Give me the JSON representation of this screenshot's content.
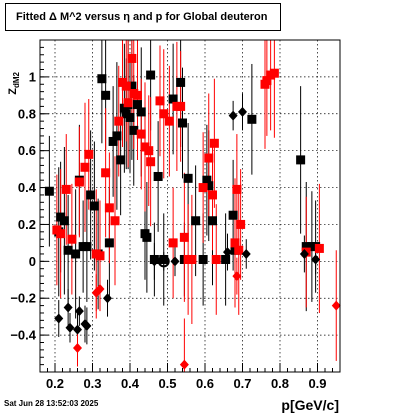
{
  "title": "Fitted Δ M^2 versus η and p for Global deuteron",
  "footer": {
    "timestamp": "Sat Jun 28 13:52:03 2025"
  },
  "chart_data": {
    "type": "scatter",
    "title": "Fitted Δ M^2 versus η and p for Global deuteron",
    "xlabel": "p[GeV/c]",
    "ylabel": "Z_dM2",
    "xlim": [
      0.16,
      0.96
    ],
    "ylim": [
      -0.6,
      1.2
    ],
    "xticks": [
      0.2,
      0.3,
      0.4,
      0.5,
      0.6,
      0.7,
      0.8,
      0.9
    ],
    "xtick_labels": [
      "0.2",
      "0.3",
      "0.4",
      "0.5",
      "0.6",
      "0.7",
      "0.8",
      "0.9"
    ],
    "yticks": [
      -0.4,
      -0.2,
      0,
      0.2,
      0.4,
      0.6,
      0.8,
      1
    ],
    "ytick_labels": [
      "−0.4",
      "−0.2",
      "0",
      "0.2",
      "0.4",
      "0.6",
      "0.8",
      "1"
    ],
    "grid": true,
    "series": [
      {
        "marker": "square",
        "color": "#000000",
        "points": [
          {
            "x": 0.185,
            "y": 0.38,
            "err": 0.3
          },
          {
            "x": 0.21,
            "y": 0.16,
            "err": 0.35
          },
          {
            "x": 0.215,
            "y": 0.24,
            "err": 0.3
          },
          {
            "x": 0.225,
            "y": 0.22,
            "err": 0.4
          },
          {
            "x": 0.235,
            "y": 0.06,
            "err": 0.3
          },
          {
            "x": 0.255,
            "y": 0.04,
            "err": 0.35
          },
          {
            "x": 0.265,
            "y": 0.44,
            "err": 0.3
          },
          {
            "x": 0.275,
            "y": 0.08,
            "err": 0.25
          },
          {
            "x": 0.285,
            "y": 0.08,
            "err": 0.3
          },
          {
            "x": 0.295,
            "y": 0.36,
            "err": 0.35
          },
          {
            "x": 0.305,
            "y": 0.3,
            "err": 0.35
          },
          {
            "x": 0.315,
            "y": 0.04,
            "err": 0.3
          },
          {
            "x": 0.325,
            "y": 0.99,
            "err": 0.35
          },
          {
            "x": 0.335,
            "y": 0.9,
            "err": 0.3
          },
          {
            "x": 0.345,
            "y": 0.1,
            "err": 0.3
          },
          {
            "x": 0.355,
            "y": 0.65,
            "err": 0.3
          },
          {
            "x": 0.365,
            "y": 0.68,
            "err": 0.4
          },
          {
            "x": 0.375,
            "y": 0.55,
            "err": 0.3
          },
          {
            "x": 0.385,
            "y": 0.83,
            "err": 0.35
          },
          {
            "x": 0.39,
            "y": 0.8,
            "err": 0.3
          },
          {
            "x": 0.395,
            "y": 0.85,
            "err": 0.35
          },
          {
            "x": 0.4,
            "y": 0.78,
            "err": 0.3
          },
          {
            "x": 0.405,
            "y": 0.95,
            "err": 0.4
          },
          {
            "x": 0.41,
            "y": 0.71,
            "err": 0.3
          },
          {
            "x": 0.42,
            "y": 0.85,
            "err": 0.3
          },
          {
            "x": 0.43,
            "y": 0.81,
            "err": 0.35
          },
          {
            "x": 0.44,
            "y": 0.15,
            "err": 0.25
          },
          {
            "x": 0.445,
            "y": 0.13,
            "err": 0.3
          },
          {
            "x": 0.455,
            "y": 1.01,
            "err": 0.3
          },
          {
            "x": 0.465,
            "y": 0.01,
            "err": 0.2
          },
          {
            "x": 0.475,
            "y": 0.46,
            "err": 0.3
          },
          {
            "x": 0.49,
            "y": 0.01,
            "err": 0.25
          },
          {
            "x": 0.515,
            "y": 0.88,
            "err": 0.3
          },
          {
            "x": 0.535,
            "y": 0.97,
            "err": 0.35
          },
          {
            "x": 0.54,
            "y": 0.75,
            "err": 0.3
          },
          {
            "x": 0.545,
            "y": 0.01,
            "err": 0.2
          },
          {
            "x": 0.555,
            "y": 0.45,
            "err": 0.3
          },
          {
            "x": 0.575,
            "y": 0.22,
            "err": 0.3
          },
          {
            "x": 0.595,
            "y": 0.01,
            "err": 0.25
          },
          {
            "x": 0.605,
            "y": 0.44,
            "err": 0.3
          },
          {
            "x": 0.61,
            "y": 0.41,
            "err": 0.3
          },
          {
            "x": 0.62,
            "y": 0.22,
            "err": 0.35
          },
          {
            "x": 0.655,
            "y": 0.01,
            "err": 0.25
          },
          {
            "x": 0.675,
            "y": 0.25,
            "err": 0.3
          },
          {
            "x": 0.68,
            "y": 0.06,
            "err": 0.25
          },
          {
            "x": 0.725,
            "y": 0.77,
            "err": 0.3
          },
          {
            "x": 0.855,
            "y": 0.55,
            "err": 0.4
          },
          {
            "x": 0.87,
            "y": 0.08,
            "err": 0.35
          },
          {
            "x": 0.885,
            "y": 0.08,
            "err": 0.3
          },
          {
            "x": 0.895,
            "y": 0.08,
            "err": 0.25
          }
        ]
      },
      {
        "marker": "square",
        "color": "#ff0000",
        "points": [
          {
            "x": 0.205,
            "y": 0.17,
            "err": 0.3
          },
          {
            "x": 0.215,
            "y": 0.15,
            "err": 0.35
          },
          {
            "x": 0.23,
            "y": 0.39,
            "err": 0.3
          },
          {
            "x": 0.245,
            "y": 0.12,
            "err": 0.3
          },
          {
            "x": 0.265,
            "y": 0.43,
            "err": 0.3
          },
          {
            "x": 0.28,
            "y": 0.51,
            "err": 0.35
          },
          {
            "x": 0.29,
            "y": 0.58,
            "err": 0.3
          },
          {
            "x": 0.31,
            "y": 0.04,
            "err": 0.35
          },
          {
            "x": 0.32,
            "y": 0.03,
            "err": 0.3
          },
          {
            "x": 0.335,
            "y": 0.48,
            "err": 0.35
          },
          {
            "x": 0.345,
            "y": 0.29,
            "err": 0.3
          },
          {
            "x": 0.36,
            "y": 0.22,
            "err": 0.35
          },
          {
            "x": 0.37,
            "y": 0.76,
            "err": 0.3
          },
          {
            "x": 0.38,
            "y": 0.97,
            "err": 0.35
          },
          {
            "x": 0.39,
            "y": 0.95,
            "err": 0.3
          },
          {
            "x": 0.395,
            "y": 0.86,
            "err": 0.35
          },
          {
            "x": 0.405,
            "y": 1.1,
            "err": 0.3
          },
          {
            "x": 0.41,
            "y": 0.91,
            "err": 0.3
          },
          {
            "x": 0.42,
            "y": 0.9,
            "err": 0.35
          },
          {
            "x": 0.43,
            "y": 0.69,
            "err": 0.3
          },
          {
            "x": 0.44,
            "y": 0.62,
            "err": 0.35
          },
          {
            "x": 0.45,
            "y": 0.6,
            "err": 0.3
          },
          {
            "x": 0.455,
            "y": 0.54,
            "err": 0.35
          },
          {
            "x": 0.48,
            "y": 0.87,
            "err": 0.3
          },
          {
            "x": 0.49,
            "y": 0.8,
            "err": 0.35
          },
          {
            "x": 0.505,
            "y": 0.76,
            "err": 0.3
          },
          {
            "x": 0.515,
            "y": 0.1,
            "err": 0.3
          },
          {
            "x": 0.525,
            "y": 0.84,
            "err": 0.35
          },
          {
            "x": 0.535,
            "y": 0.84,
            "err": 0.3
          },
          {
            "x": 0.545,
            "y": 0.13,
            "err": 0.35
          },
          {
            "x": 0.555,
            "y": 0.01,
            "err": 0.3
          },
          {
            "x": 0.565,
            "y": 0.01,
            "err": 0.35
          },
          {
            "x": 0.595,
            "y": 0.4,
            "err": 0.3
          },
          {
            "x": 0.61,
            "y": 0.56,
            "err": 0.35
          },
          {
            "x": 0.62,
            "y": 0.36,
            "err": 0.3
          },
          {
            "x": 0.625,
            "y": 0.64,
            "err": 0.35
          },
          {
            "x": 0.63,
            "y": 0.01,
            "err": 0.3
          },
          {
            "x": 0.68,
            "y": 0.1,
            "err": 0.35
          },
          {
            "x": 0.685,
            "y": 0.39,
            "err": 0.3
          },
          {
            "x": 0.69,
            "y": 0.06,
            "err": 0.35
          },
          {
            "x": 0.695,
            "y": 0.2,
            "err": 0.3
          },
          {
            "x": 0.76,
            "y": 0.96,
            "err": 0.35
          },
          {
            "x": 0.765,
            "y": 0.98,
            "err": 0.3
          },
          {
            "x": 0.775,
            "y": 1.01,
            "err": 0.3
          },
          {
            "x": 0.785,
            "y": 1.02,
            "err": 0.35
          },
          {
            "x": 0.87,
            "y": 0.05,
            "err": 0.3
          },
          {
            "x": 0.905,
            "y": 0.07,
            "err": 0.35
          }
        ]
      },
      {
        "marker": "diamond",
        "color": "#000000",
        "points": [
          {
            "x": 0.21,
            "y": -0.31,
            "err": 0.1
          },
          {
            "x": 0.235,
            "y": -0.25,
            "err": 0.1
          },
          {
            "x": 0.24,
            "y": -0.36,
            "err": 0.08
          },
          {
            "x": 0.26,
            "y": -0.37,
            "err": 0.1
          },
          {
            "x": 0.265,
            "y": -0.27,
            "err": 0.08
          },
          {
            "x": 0.28,
            "y": -0.34,
            "err": 0.1
          },
          {
            "x": 0.285,
            "y": -0.35,
            "err": 0.1
          },
          {
            "x": 0.34,
            "y": -0.2,
            "err": 0.1
          },
          {
            "x": 0.465,
            "y": 0.0,
            "err": 0.1
          },
          {
            "x": 0.52,
            "y": 0.0,
            "err": 0.08
          },
          {
            "x": 0.66,
            "y": 0.05,
            "err": 0.1
          },
          {
            "x": 0.675,
            "y": 0.79,
            "err": 0.08
          },
          {
            "x": 0.7,
            "y": 0.81,
            "err": 0.1
          },
          {
            "x": 0.71,
            "y": 0.04,
            "err": 0.08
          },
          {
            "x": 0.865,
            "y": 0.04,
            "err": 0.1
          },
          {
            "x": 0.895,
            "y": 0.01,
            "err": 0.08
          }
        ]
      },
      {
        "marker": "diamond",
        "color": "#ff0000",
        "points": [
          {
            "x": 0.26,
            "y": -0.47,
            "err": 0.1
          },
          {
            "x": 0.31,
            "y": -0.17,
            "err": 0.1
          },
          {
            "x": 0.32,
            "y": -0.15,
            "err": 0.1
          },
          {
            "x": 0.545,
            "y": -0.56,
            "err": 0.25
          },
          {
            "x": 0.685,
            "y": -0.08,
            "err": 0.1
          },
          {
            "x": 0.95,
            "y": -0.24,
            "err": 0.3
          }
        ]
      },
      {
        "marker": "circle",
        "color": "#000000",
        "points": [
          {
            "x": 0.49,
            "y": 0.0,
            "err": 0.05
          }
        ]
      }
    ]
  }
}
